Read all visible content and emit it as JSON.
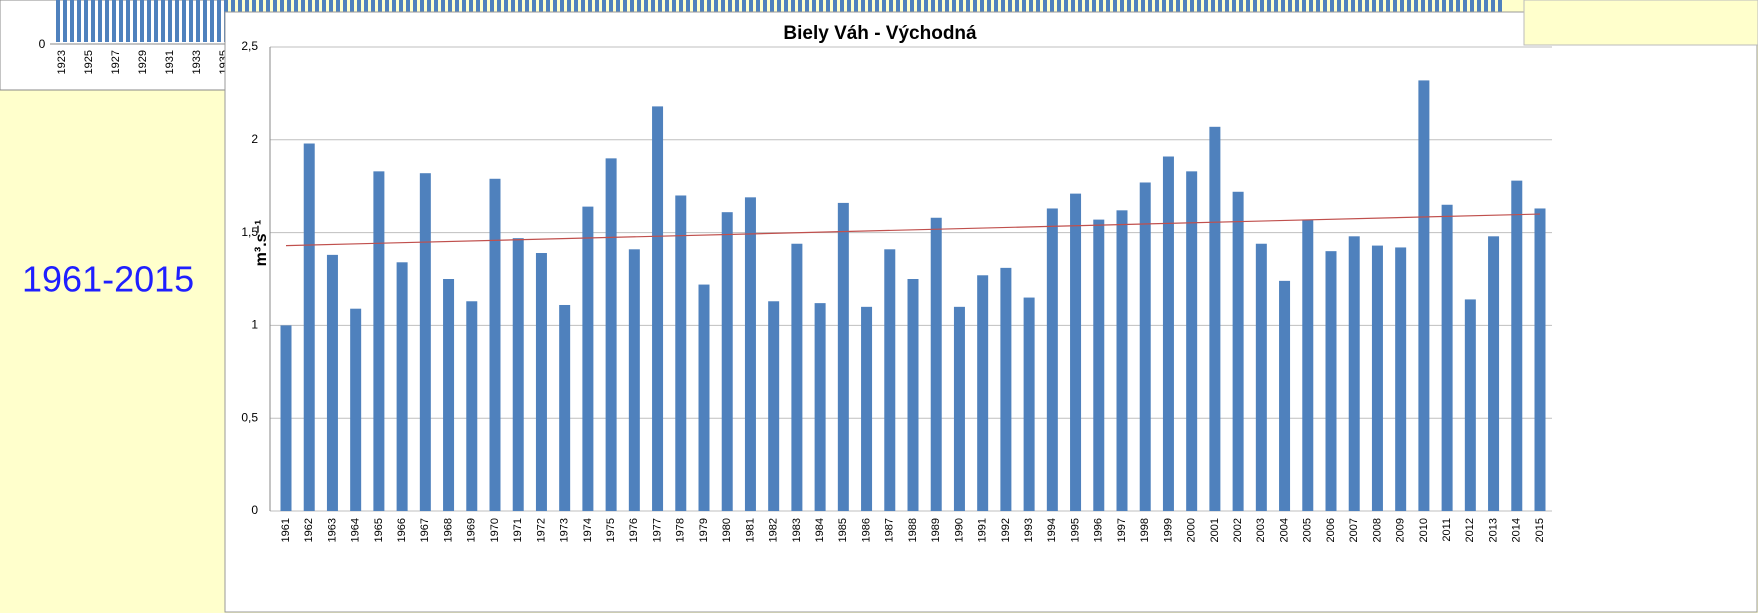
{
  "chart_data": {
    "type": "bar",
    "title": "Biely Váh - Východná",
    "ylabel": "m³.s⁻¹",
    "period_label": "1961-2015",
    "categories": [
      "1961",
      "1962",
      "1963",
      "1964",
      "1965",
      "1966",
      "1967",
      "1968",
      "1969",
      "1970",
      "1971",
      "1972",
      "1973",
      "1974",
      "1975",
      "1976",
      "1977",
      "1978",
      "1979",
      "1980",
      "1981",
      "1982",
      "1983",
      "1984",
      "1985",
      "1986",
      "1987",
      "1988",
      "1989",
      "1990",
      "1991",
      "1992",
      "1993",
      "1994",
      "1995",
      "1996",
      "1997",
      "1998",
      "1999",
      "2000",
      "2001",
      "2002",
      "2003",
      "2004",
      "2005",
      "2006",
      "2007",
      "2008",
      "2009",
      "2010",
      "2011",
      "2012",
      "2013",
      "2014",
      "2015"
    ],
    "values": [
      1.0,
      1.98,
      1.38,
      1.09,
      1.83,
      1.34,
      1.82,
      1.25,
      1.13,
      1.79,
      1.47,
      1.39,
      1.11,
      1.64,
      1.9,
      1.41,
      2.18,
      1.7,
      1.22,
      1.61,
      1.69,
      1.13,
      1.44,
      1.12,
      1.66,
      1.1,
      1.41,
      1.25,
      1.58,
      1.1,
      1.27,
      1.31,
      1.15,
      1.63,
      1.71,
      1.57,
      1.62,
      1.77,
      1.91,
      1.83,
      2.07,
      1.72,
      1.44,
      1.24,
      1.57,
      1.4,
      1.48,
      1.43,
      1.42,
      2.32,
      1.65,
      1.14,
      1.48,
      1.78,
      1.63
    ],
    "color": "#4f81bd",
    "trend": {
      "color": "#c0504d",
      "values": [
        1.43,
        1.6
      ]
    },
    "ylim": [
      0,
      2.5
    ],
    "yticks": [
      0,
      {
        "value": 0.5,
        "label": "0,5"
      },
      1,
      {
        "value": 1.5,
        "label": "1,5"
      },
      2,
      {
        "value": 2.5,
        "label": "2,5"
      }
    ],
    "grid": true
  },
  "background_chart": {
    "yticks": [
      0
    ],
    "categories": [
      "1923",
      "1925",
      "1927",
      "1929",
      "1931",
      "1933",
      "1935"
    ]
  }
}
